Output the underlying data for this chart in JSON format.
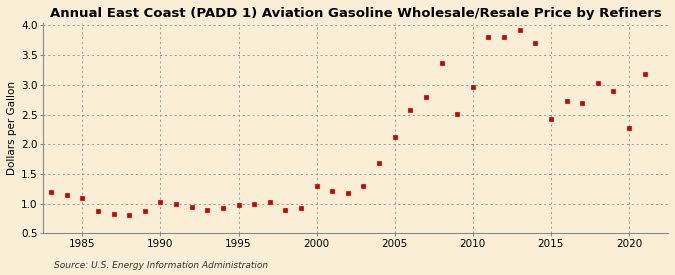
{
  "title": "Annual East Coast (PADD 1) Aviation Gasoline Wholesale/Resale Price by Refiners",
  "ylabel": "Dollars per Gallon",
  "source": "Source: U.S. Energy Information Administration",
  "background_color": "#faefd6",
  "marker_color": "#cc0000",
  "xlim": [
    1982.5,
    2022.5
  ],
  "ylim": [
    0.5,
    4.05
  ],
  "yticks": [
    0.5,
    1.0,
    1.5,
    2.0,
    2.5,
    3.0,
    3.5,
    4.0
  ],
  "xticks": [
    1985,
    1990,
    1995,
    2000,
    2005,
    2010,
    2015,
    2020
  ],
  "years": [
    1983,
    1984,
    1985,
    1986,
    1987,
    1988,
    1989,
    1990,
    1991,
    1992,
    1993,
    1994,
    1995,
    1996,
    1997,
    1998,
    1999,
    2000,
    2001,
    2002,
    2003,
    2004,
    2005,
    2006,
    2007,
    2008,
    2009,
    2010,
    2011,
    2012,
    2013,
    2014,
    2015,
    2016,
    2017,
    2018,
    2019,
    2020,
    2021
  ],
  "values": [
    1.2,
    1.15,
    1.1,
    0.88,
    0.83,
    0.8,
    0.87,
    1.02,
    1.0,
    0.95,
    0.9,
    0.92,
    0.98,
    1.0,
    1.03,
    0.9,
    0.93,
    1.3,
    1.22,
    1.18,
    1.3,
    1.68,
    2.12,
    2.57,
    2.79,
    3.36,
    2.51,
    2.96,
    3.8,
    3.8,
    3.92,
    3.7,
    2.42,
    2.72,
    2.7,
    3.03,
    2.9,
    2.27,
    3.18
  ],
  "title_fontsize": 9.5,
  "label_fontsize": 7.5,
  "tick_fontsize": 7.5,
  "source_fontsize": 6.5,
  "marker_size": 3.5
}
